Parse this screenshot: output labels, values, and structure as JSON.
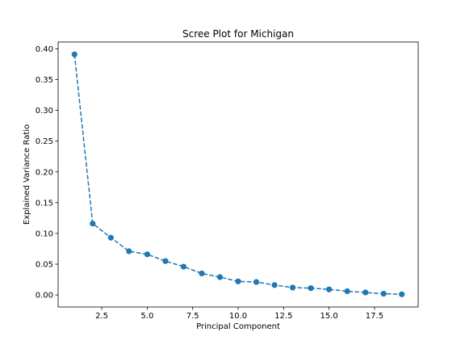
{
  "chart_data": {
    "type": "line",
    "title": "Scree Plot for Michigan",
    "xlabel": "Principal Component",
    "ylabel": "Explained Variance Ratio",
    "xlim": [
      0.1,
      19.9
    ],
    "ylim": [
      -0.0196,
      0.4111
    ],
    "xticks": [
      2.5,
      5.0,
      7.5,
      10.0,
      12.5,
      15.0,
      17.5
    ],
    "xtick_labels": [
      "2.5",
      "5.0",
      "7.5",
      "10.0",
      "12.5",
      "15.0",
      "17.5"
    ],
    "yticks": [
      0.0,
      0.05,
      0.1,
      0.15,
      0.2,
      0.25,
      0.3,
      0.35,
      0.4
    ],
    "ytick_labels": [
      "0.00",
      "0.05",
      "0.10",
      "0.15",
      "0.20",
      "0.25",
      "0.30",
      "0.35",
      "0.40"
    ],
    "grid": false,
    "series": [
      {
        "line_style": "dashed",
        "marker": "circle",
        "color": "#1f77b4",
        "x": [
          1,
          2,
          3,
          4,
          5,
          6,
          7,
          8,
          9,
          10,
          11,
          12,
          13,
          14,
          15,
          16,
          17,
          18,
          19
        ],
        "values": [
          0.391,
          0.116,
          0.093,
          0.071,
          0.066,
          0.055,
          0.046,
          0.035,
          0.029,
          0.022,
          0.021,
          0.016,
          0.012,
          0.011,
          0.009,
          0.006,
          0.004,
          0.002,
          0.001
        ]
      }
    ]
  }
}
